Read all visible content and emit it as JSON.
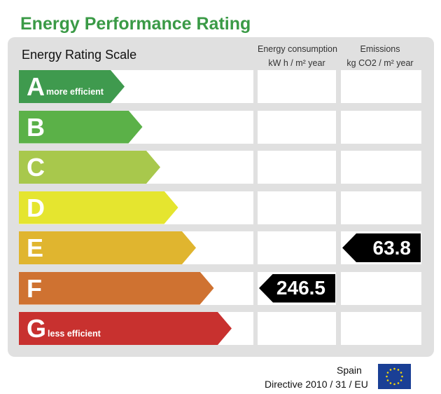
{
  "title": "Energy Performance Rating",
  "scale_label": "Energy Rating Scale",
  "columns": {
    "consumption": {
      "line1": "Energy consumption",
      "line2": "kW h / m² year"
    },
    "emissions": {
      "line1": "Emissions",
      "line2": "kg CO2 / m² year"
    }
  },
  "bands": [
    {
      "letter": "A",
      "note": "more efficient",
      "color": "#3f9a4e"
    },
    {
      "letter": "B",
      "note": "",
      "color": "#5bb148"
    },
    {
      "letter": "C",
      "note": "",
      "color": "#a8c84c"
    },
    {
      "letter": "D",
      "note": "",
      "color": "#e5e52f"
    },
    {
      "letter": "E",
      "note": "",
      "color": "#e0b52f"
    },
    {
      "letter": "F",
      "note": "",
      "color": "#cf7231"
    },
    {
      "letter": "G",
      "note": "less efficient",
      "color": "#c8312f"
    }
  ],
  "ratings": {
    "consumption": {
      "value": "246.5",
      "band": "F"
    },
    "emissions": {
      "value": "63.8",
      "band": "E"
    }
  },
  "footer": {
    "country": "Spain",
    "directive": "Directive 2010 / 31 / EU"
  },
  "eu_flag": {
    "icon": "eu-flag-icon",
    "blue": "#1a3f95",
    "star": "#f5d60a"
  }
}
